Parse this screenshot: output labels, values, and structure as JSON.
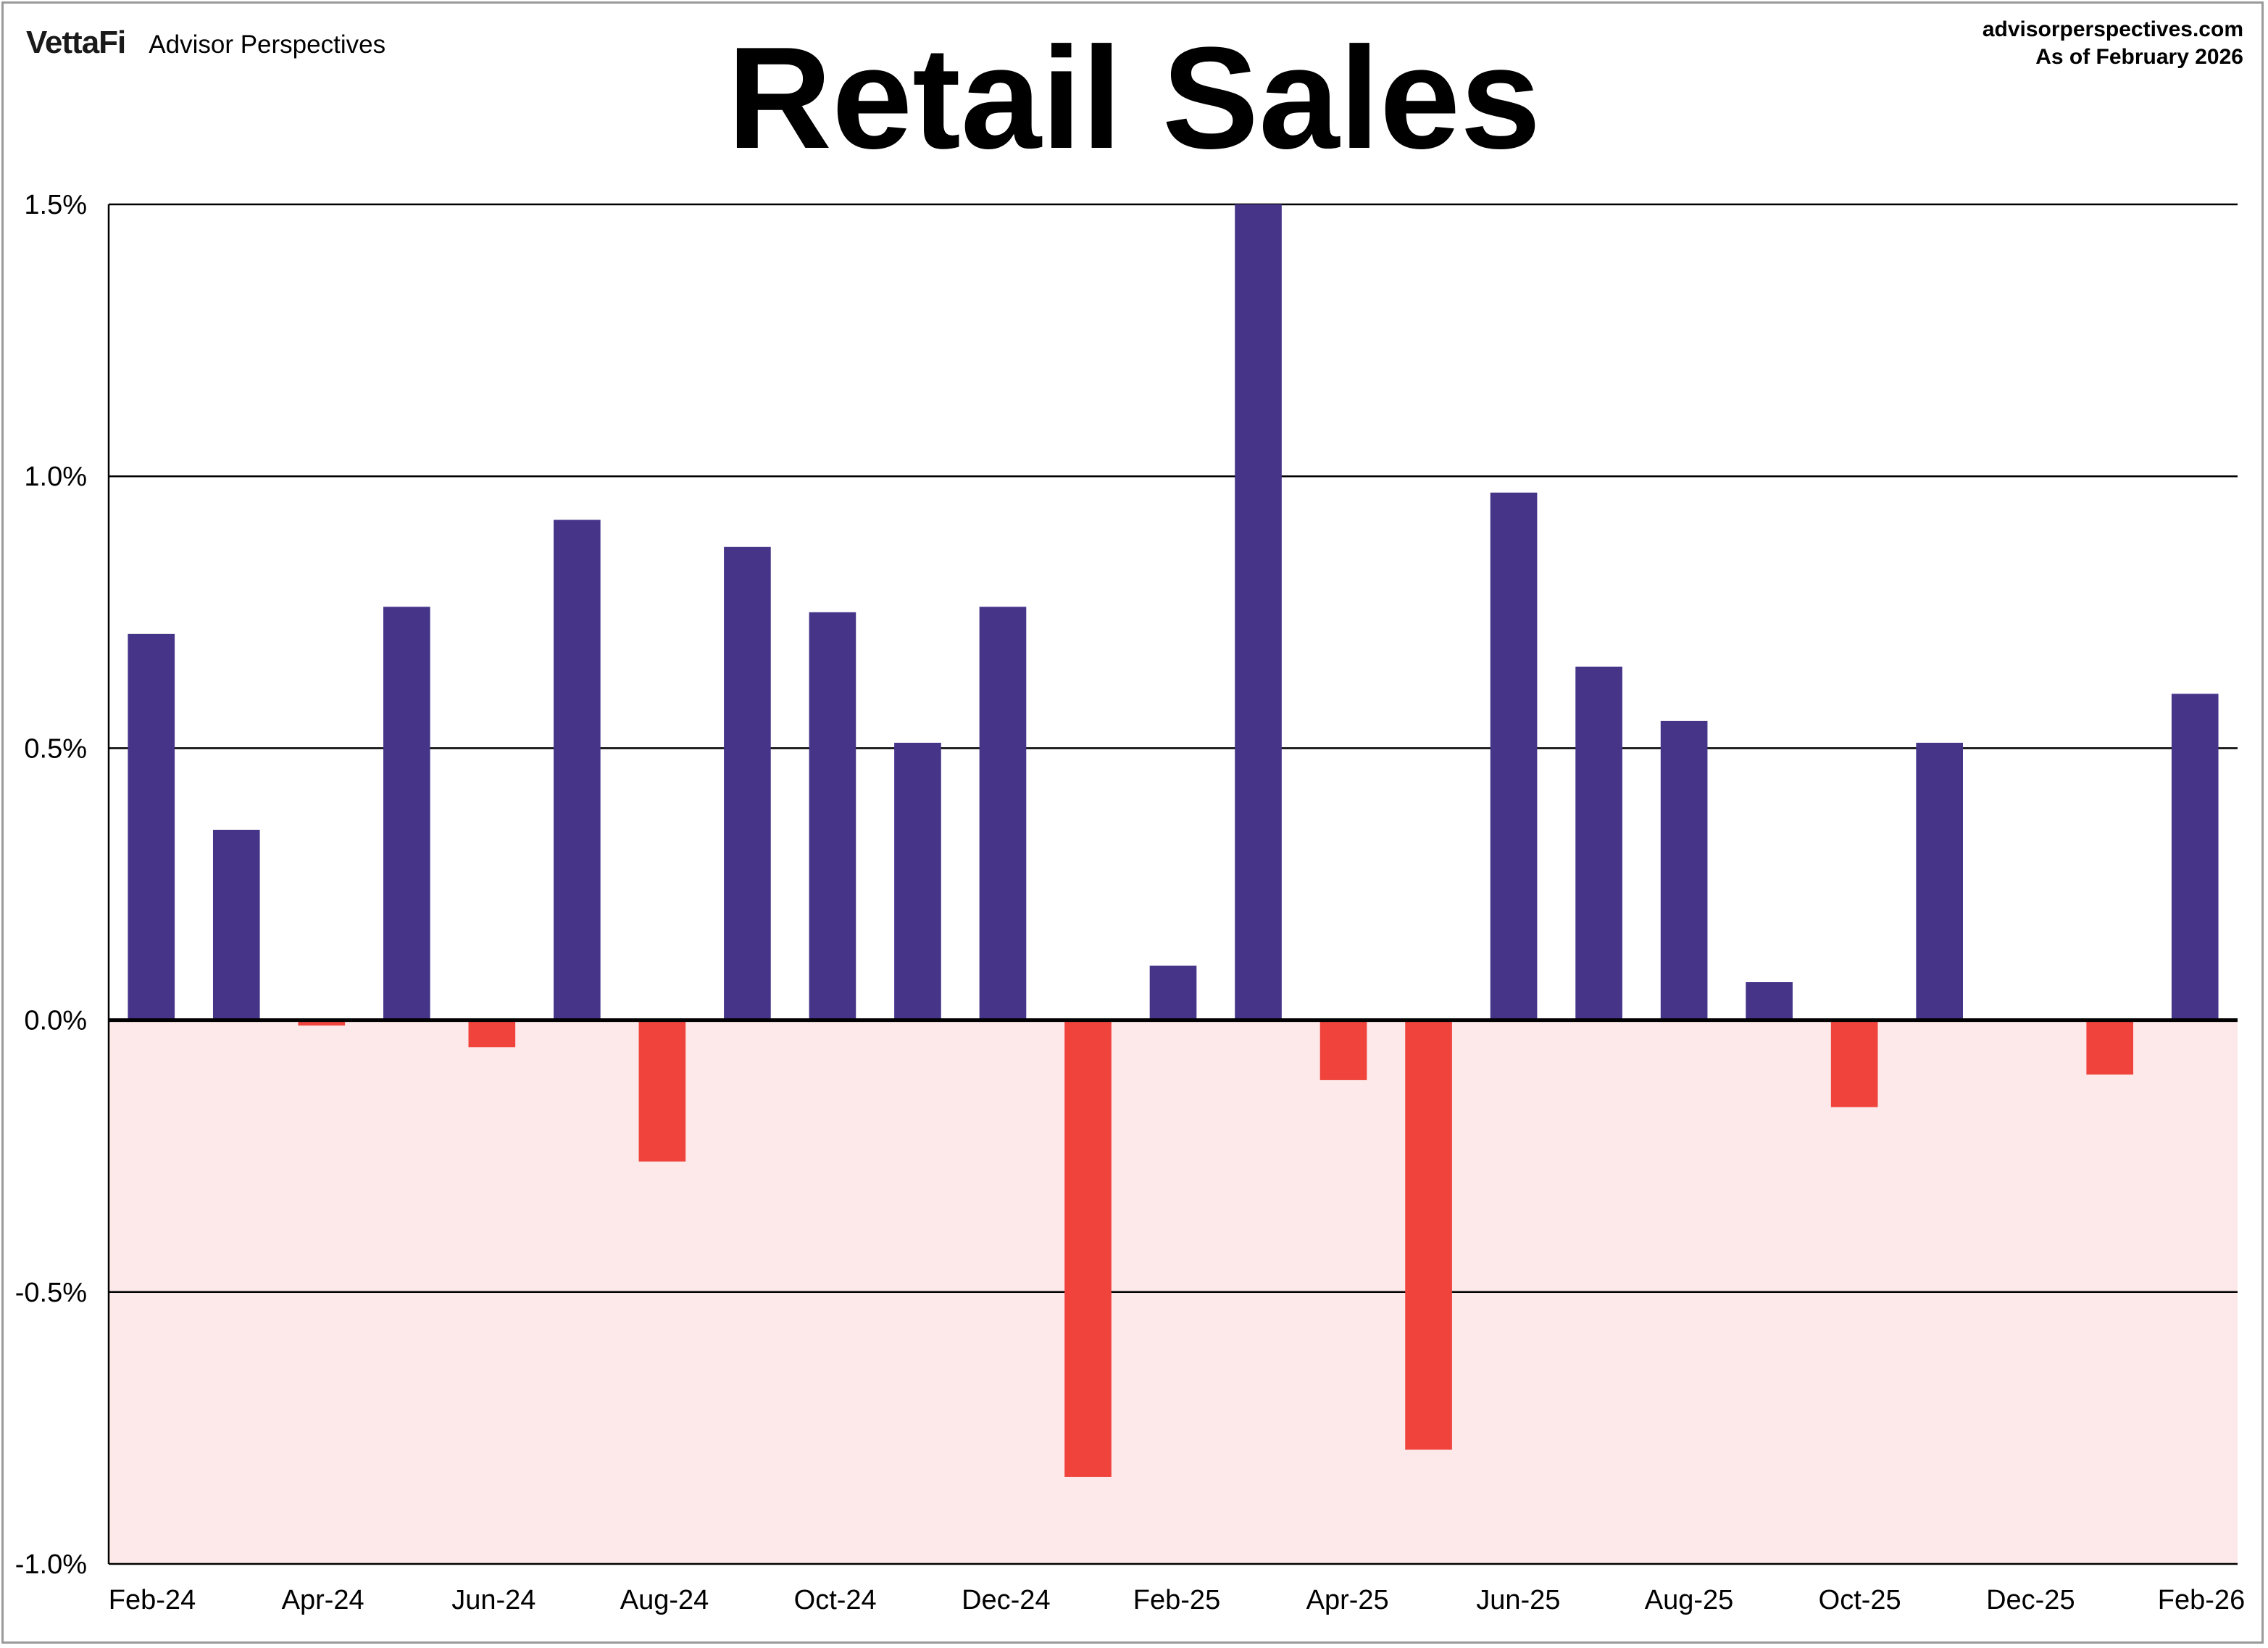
{
  "header": {
    "brand_logo": "VettaFi",
    "brand_name": "Advisor Perspectives",
    "source_url": "advisorperspectives.com",
    "as_of": "As of February 2026"
  },
  "colors": {
    "positive": "#463489",
    "negative": "#EF433C",
    "negative_zone": "#FDE9E9",
    "grid": "#000000"
  },
  "chart_data": {
    "type": "bar",
    "title": "Retail Sales",
    "xlabel": "",
    "ylabel": "",
    "ylim": [
      -1.0,
      1.5
    ],
    "y_ticks": [
      1.5,
      1.0,
      0.5,
      0.0,
      -0.5,
      -1.0
    ],
    "y_tick_labels": [
      "1.5%",
      "1.0%",
      "0.5%",
      "0.0%",
      "-0.5%",
      "-1.0%"
    ],
    "y_grid": true,
    "negative_region_shaded": true,
    "categories": [
      "Feb-24",
      "Mar-24",
      "Apr-24",
      "May-24",
      "Jun-24",
      "Jul-24",
      "Aug-24",
      "Sep-24",
      "Oct-24",
      "Nov-24",
      "Dec-24",
      "Jan-25",
      "Feb-25",
      "Mar-25",
      "Apr-25",
      "May-25",
      "Jun-25",
      "Jul-25",
      "Aug-25",
      "Sep-25",
      "Oct-25",
      "Nov-25",
      "Dec-25",
      "Jan-26",
      "Feb-26"
    ],
    "x_tick_labels": [
      "Feb-24",
      "Apr-24",
      "Jun-24",
      "Aug-24",
      "Oct-24",
      "Dec-24",
      "Feb-25",
      "Apr-25",
      "Jun-25",
      "Aug-25",
      "Oct-25",
      "Dec-25",
      "Feb-26"
    ],
    "values": [
      0.71,
      0.35,
      -0.01,
      0.76,
      -0.05,
      0.92,
      -0.26,
      0.87,
      0.75,
      0.51,
      0.76,
      -0.84,
      0.1,
      1.5,
      -0.11,
      -0.79,
      0.97,
      0.65,
      0.55,
      0.07,
      -0.16,
      0.51,
      0.0,
      -0.1,
      0.6
    ]
  }
}
